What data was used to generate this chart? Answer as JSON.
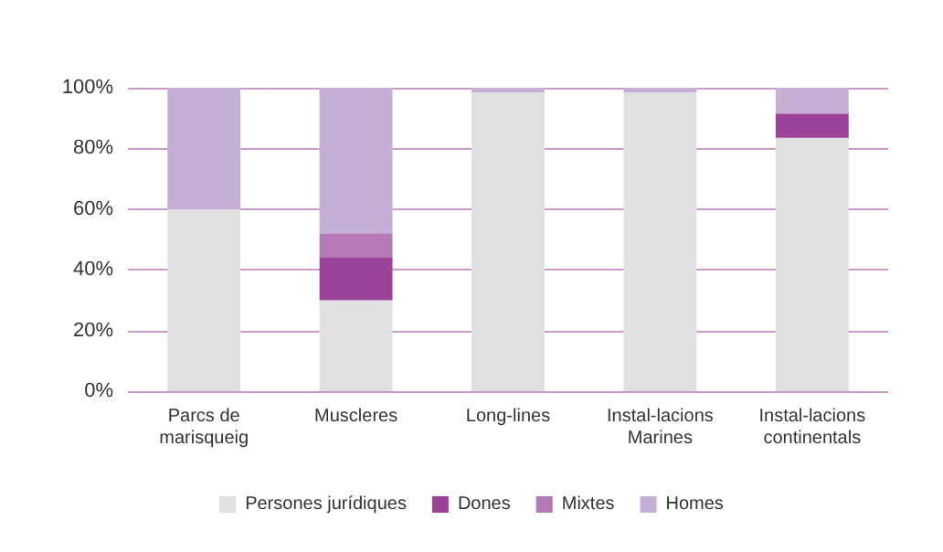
{
  "chart_data": {
    "type": "bar",
    "stacked": true,
    "categories": [
      "Parcs de\nmarisqueig",
      "Muscleres",
      "Long-lines",
      "Instal-lacions\nMarines",
      "Instal-lacions\ncontinentals"
    ],
    "series": [
      {
        "name": "Persones jurídiques",
        "color": "#e0e0e2",
        "values": [
          60,
          30,
          98.5,
          98.5,
          83.5
        ]
      },
      {
        "name": "Dones",
        "color": "#9b4299",
        "values": [
          0,
          14,
          0,
          0,
          8
        ]
      },
      {
        "name": "Mixtes",
        "color": "#b57ab5",
        "values": [
          0,
          8,
          0,
          0,
          0
        ]
      },
      {
        "name": "Homes",
        "color": "#c6afd4",
        "values": [
          40,
          48,
          1.5,
          1.5,
          8.5
        ]
      }
    ],
    "ylim": [
      0,
      100
    ],
    "yticks": [
      {
        "value": 0,
        "label": "0%"
      },
      {
        "value": 20,
        "label": "20%"
      },
      {
        "value": 40,
        "label": "40%"
      },
      {
        "value": 60,
        "label": "60%"
      },
      {
        "value": 80,
        "label": "80%"
      },
      {
        "value": 100,
        "label": "100%"
      }
    ],
    "grid": "y",
    "legend": "bottom"
  }
}
